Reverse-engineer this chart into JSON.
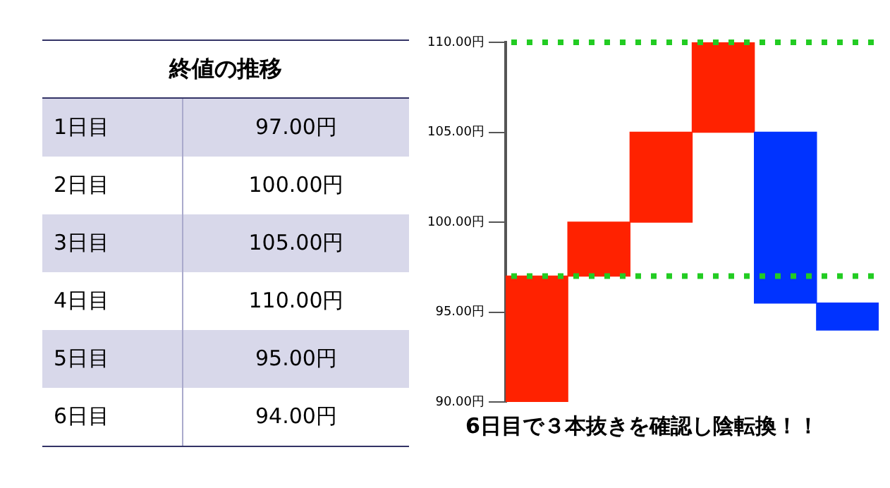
{
  "chart_data": {
    "type": "bar",
    "title": "終値の推移",
    "categories": [
      null,
      null,
      null,
      null,
      null,
      null
    ],
    "base": [
      90,
      97,
      100,
      105,
      95.5,
      94
    ],
    "values": [
      7,
      3,
      5,
      5,
      9.5,
      1.5
    ],
    "colors": [
      "#ff2200",
      "#ff2200",
      "#ff2200",
      "#ff2200",
      "#0033ff",
      "#0033ff"
    ],
    "ylim": [
      90,
      110
    ],
    "yticks": [
      {
        "value": 90,
        "label": "90.00円"
      },
      {
        "value": 95,
        "label": "95.00円"
      },
      {
        "value": 100,
        "label": "100.00円"
      },
      {
        "value": 105,
        "label": "105.00円"
      },
      {
        "value": 110,
        "label": "110.00円"
      }
    ],
    "ref_lines": [
      {
        "axis": "y",
        "value": 97,
        "color": "#22cc22",
        "line_style": "dotted"
      },
      {
        "axis": "y",
        "value": 110,
        "color": "#22cc22",
        "line_style": "dotted"
      }
    ],
    "grid": false,
    "legend": false,
    "tick_labels": "y",
    "annotations": [
      "1日目",
      "97.00円",
      "2日目",
      "100.00円",
      "3日目",
      "105.00円",
      "4日目",
      "110.00円",
      "5日目",
      "95.00円",
      "6日目",
      "94.00円",
      "6日目で３本抜きを確認し陰転換！！"
    ]
  }
}
